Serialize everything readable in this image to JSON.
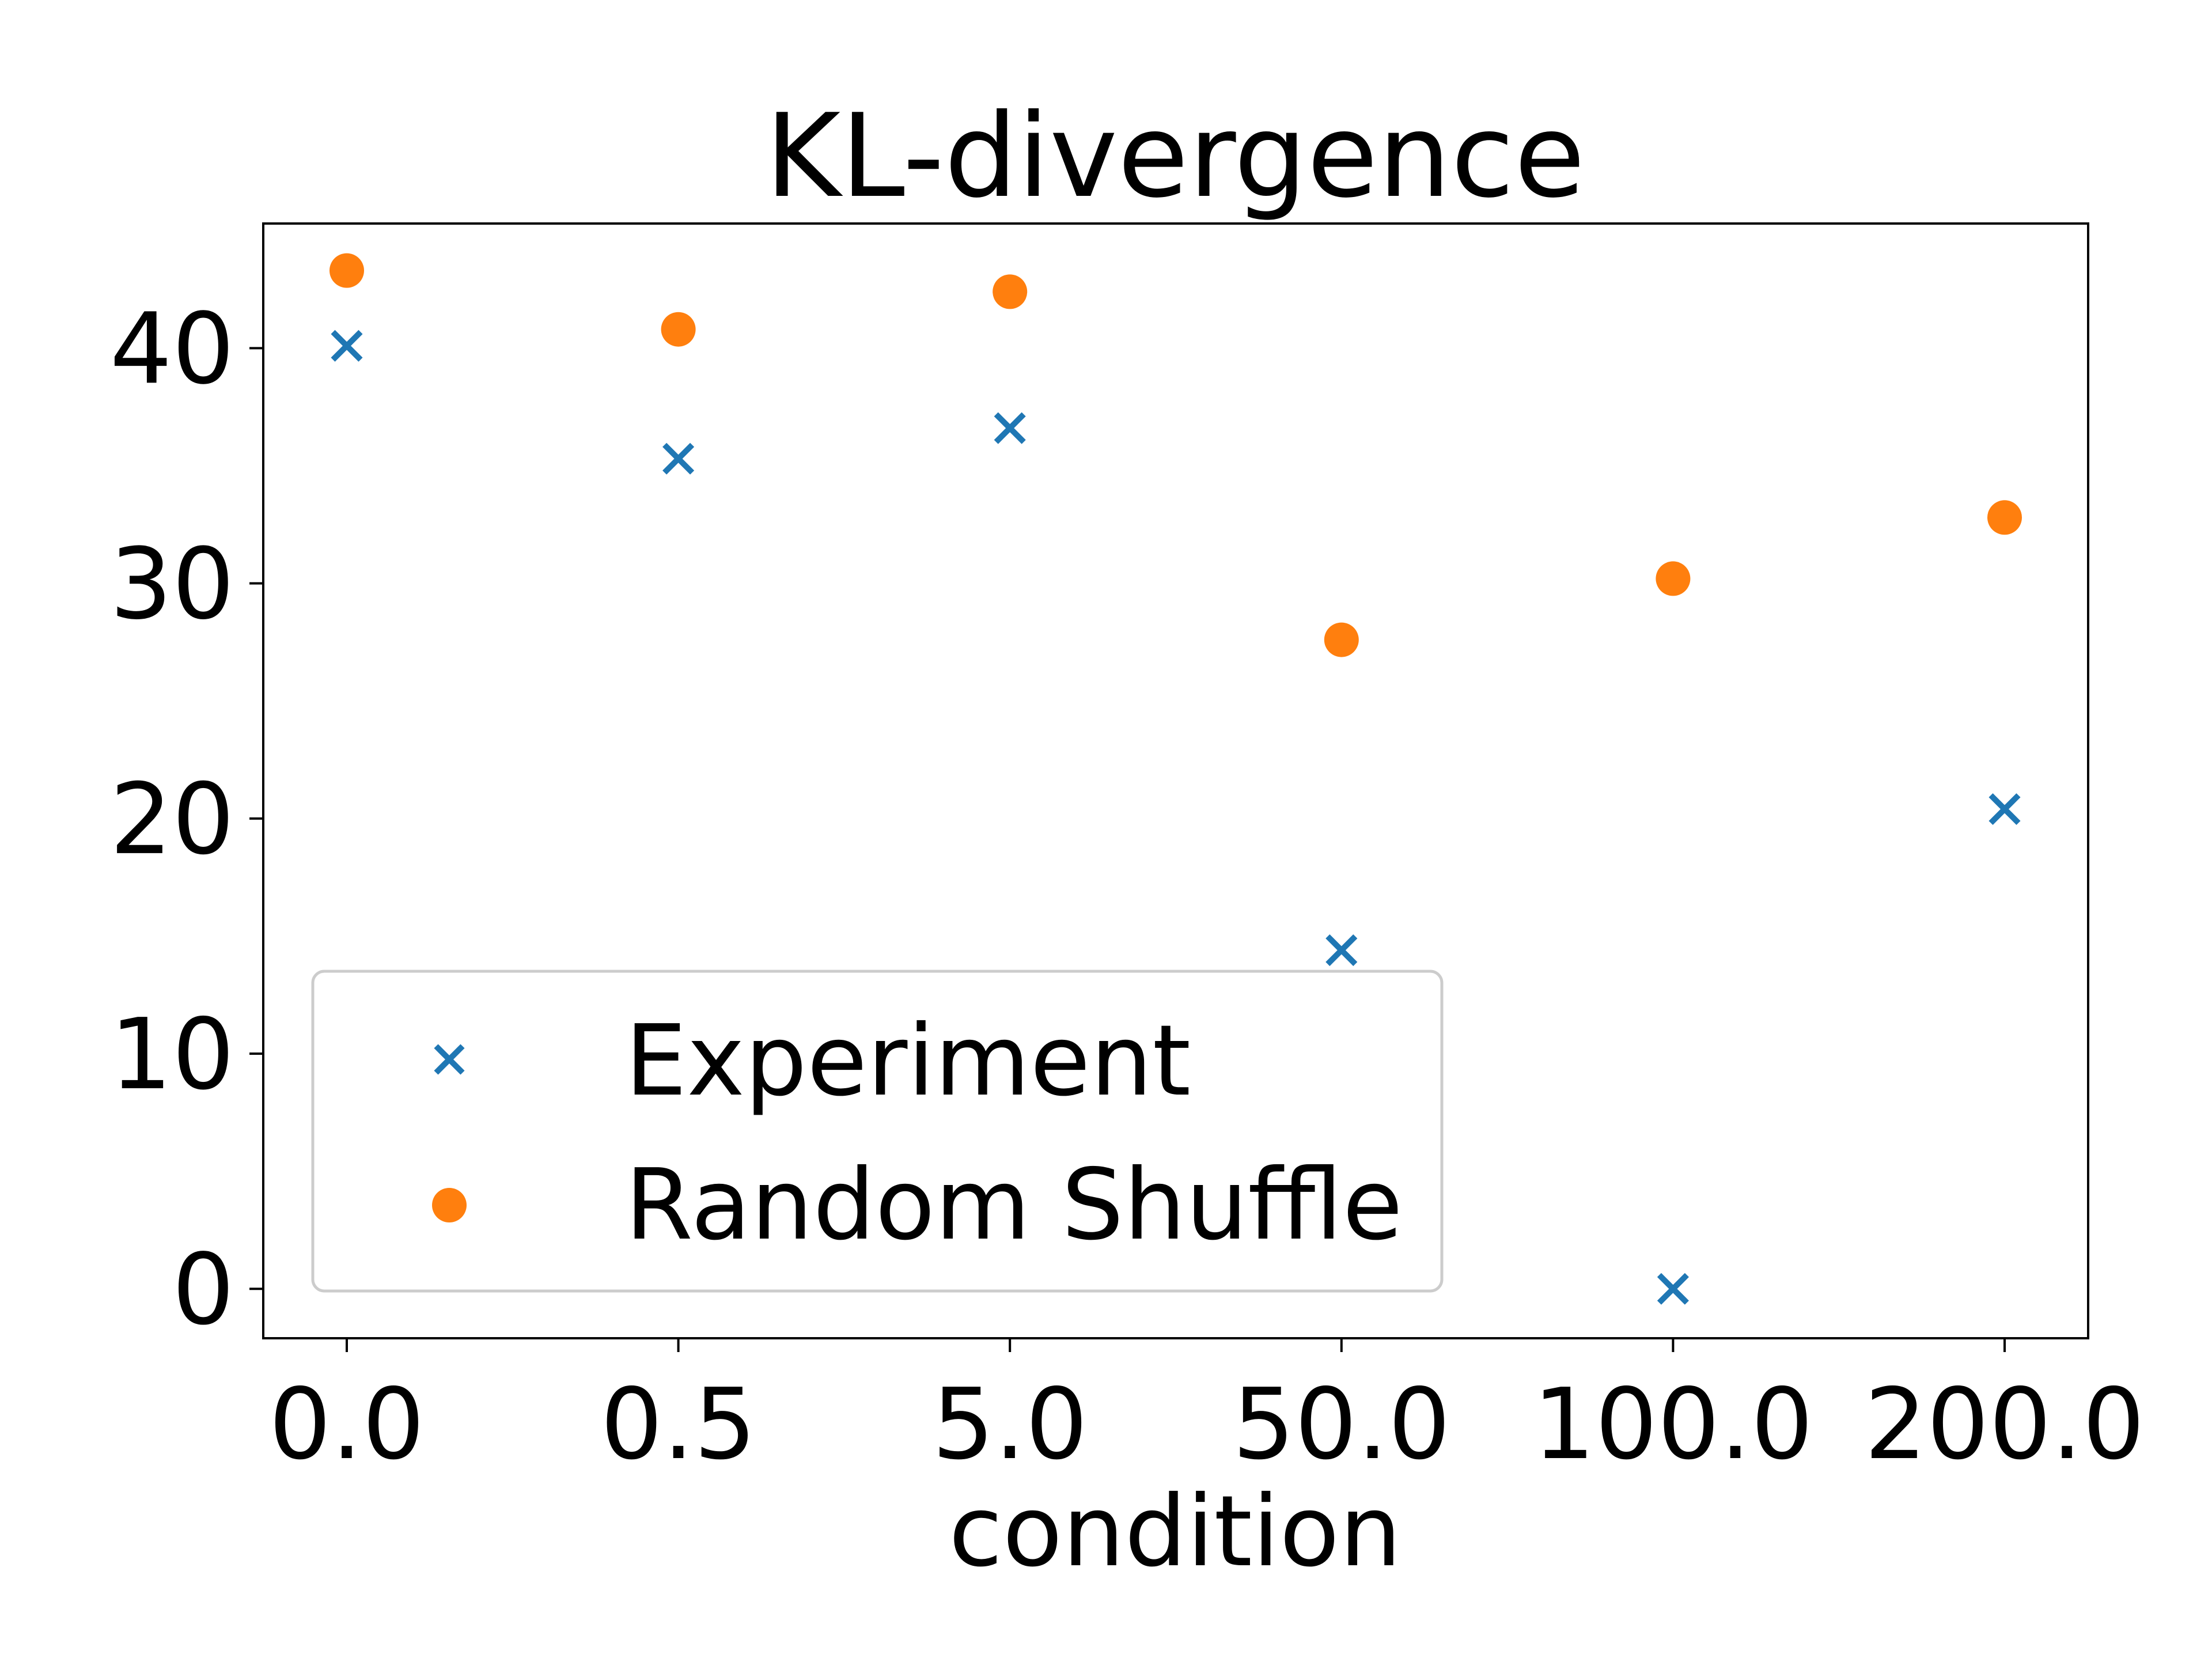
{
  "chart_data": {
    "type": "scatter",
    "title": "KL-divergence",
    "xlabel": "condition",
    "ylabel": "",
    "categories": [
      "0.0",
      "0.5",
      "5.0",
      "50.0",
      "100.0",
      "200.0"
    ],
    "yticks": [
      "0",
      "10",
      "20",
      "30",
      "40"
    ],
    "ylim": [
      -2.1,
      45.3
    ],
    "legend_position": "lower-left",
    "grid": false,
    "series": [
      {
        "name": "Experiment",
        "marker": "x",
        "color": "#1f77b4",
        "values": [
          40.1,
          35.3,
          36.6,
          14.4,
          0.0,
          20.4
        ]
      },
      {
        "name": "Random Shuffle",
        "marker": "o",
        "color": "#ff7f0e",
        "values": [
          43.3,
          40.8,
          42.4,
          27.6,
          30.2,
          32.8
        ]
      }
    ]
  }
}
